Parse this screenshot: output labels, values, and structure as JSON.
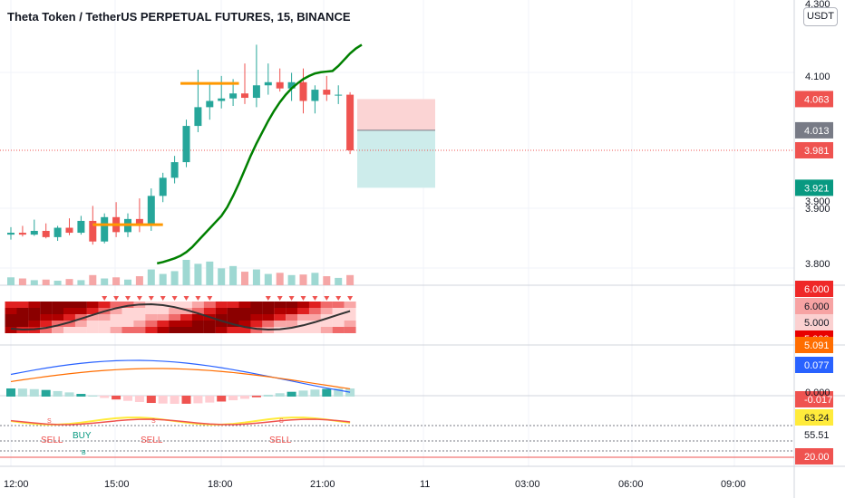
{
  "header": {
    "title": "Theta Token / TetherUS PERPETUAL FUTURES, 15, BINANCE",
    "currency": "USDT"
  },
  "colors": {
    "up": "#26a69a",
    "down": "#ef5350",
    "up_vol": "#9ed8d2",
    "down_vol": "#f5a6a6",
    "ma": "#008000",
    "level": "#ff9800",
    "short_loss_zone": "#fbd4d4",
    "short_profit_zone": "#cdeceb"
  },
  "chart_data": [
    {
      "type": "candlestick",
      "pane": "price",
      "yticks": [
        "4.100",
        "3.900",
        "3.800"
      ],
      "ylim": [
        3.765,
        4.21
      ],
      "candles": [
        {
          "o": 3.846,
          "h": 3.858,
          "l": 3.838,
          "c": 3.849
        },
        {
          "o": 3.849,
          "h": 3.86,
          "l": 3.843,
          "c": 3.846
        },
        {
          "o": 3.846,
          "h": 3.87,
          "l": 3.844,
          "c": 3.852
        },
        {
          "o": 3.852,
          "h": 3.864,
          "l": 3.84,
          "c": 3.842
        },
        {
          "o": 3.842,
          "h": 3.86,
          "l": 3.836,
          "c": 3.857
        },
        {
          "o": 3.857,
          "h": 3.872,
          "l": 3.845,
          "c": 3.849
        },
        {
          "o": 3.849,
          "h": 3.876,
          "l": 3.846,
          "c": 3.868
        },
        {
          "o": 3.868,
          "h": 3.892,
          "l": 3.83,
          "c": 3.835
        },
        {
          "o": 3.835,
          "h": 3.88,
          "l": 3.832,
          "c": 3.874
        },
        {
          "o": 3.874,
          "h": 3.898,
          "l": 3.842,
          "c": 3.85
        },
        {
          "o": 3.85,
          "h": 3.88,
          "l": 3.842,
          "c": 3.871
        },
        {
          "o": 3.871,
          "h": 3.904,
          "l": 3.85,
          "c": 3.862
        },
        {
          "o": 3.862,
          "h": 3.92,
          "l": 3.852,
          "c": 3.908
        },
        {
          "o": 3.908,
          "h": 3.945,
          "l": 3.898,
          "c": 3.937
        },
        {
          "o": 3.937,
          "h": 3.972,
          "l": 3.928,
          "c": 3.962
        },
        {
          "o": 3.962,
          "h": 4.03,
          "l": 3.954,
          "c": 4.02
        },
        {
          "o": 4.02,
          "h": 4.11,
          "l": 4.01,
          "c": 4.05
        },
        {
          "o": 4.05,
          "h": 4.09,
          "l": 4.03,
          "c": 4.06
        },
        {
          "o": 4.06,
          "h": 4.1,
          "l": 4.048,
          "c": 4.064
        },
        {
          "o": 4.064,
          "h": 4.095,
          "l": 4.052,
          "c": 4.072
        },
        {
          "o": 4.072,
          "h": 4.12,
          "l": 4.055,
          "c": 4.065
        },
        {
          "o": 4.065,
          "h": 4.15,
          "l": 4.05,
          "c": 4.085
        },
        {
          "o": 4.085,
          "h": 4.12,
          "l": 4.07,
          "c": 4.09
        },
        {
          "o": 4.09,
          "h": 4.112,
          "l": 4.075,
          "c": 4.08
        },
        {
          "o": 4.08,
          "h": 4.105,
          "l": 4.06,
          "c": 4.09
        },
        {
          "o": 4.09,
          "h": 4.112,
          "l": 4.04,
          "c": 4.06
        },
        {
          "o": 4.06,
          "h": 4.085,
          "l": 4.04,
          "c": 4.078
        },
        {
          "o": 4.078,
          "h": 4.1,
          "l": 4.06,
          "c": 4.07
        },
        {
          "o": 4.07,
          "h": 4.085,
          "l": 4.055,
          "c": 4.07
        },
        {
          "o": 4.07,
          "h": 4.074,
          "l": 3.975,
          "c": 3.981
        }
      ],
      "volume": [
        14,
        12,
        9,
        10,
        8,
        11,
        9,
        18,
        12,
        14,
        10,
        16,
        28,
        20,
        25,
        45,
        38,
        42,
        30,
        34,
        24,
        28,
        20,
        22,
        18,
        19,
        22,
        16,
        13,
        18
      ],
      "ma": [
        3.8,
        3.802,
        3.805,
        3.808,
        3.812,
        3.818,
        3.826,
        3.836,
        3.846,
        3.856,
        3.866,
        3.876,
        3.89,
        3.908,
        3.928,
        3.95,
        3.972,
        3.992,
        4.01,
        4.028,
        4.044,
        4.058,
        4.07,
        4.08,
        4.088,
        4.095,
        4.1,
        4.104,
        4.106,
        4.107,
        4.108,
        4.116,
        4.126,
        4.136,
        4.144,
        4.15
      ],
      "levels": [
        {
          "from": 14,
          "to": 26,
          "price": 3.862
        },
        {
          "from": 29,
          "to": 39,
          "price": 4.088
        }
      ],
      "short_position": {
        "stop": 4.063,
        "entry": 4.013,
        "target": 3.921
      },
      "price_labels": [
        {
          "text": "4.063",
          "color": "#ef5350"
        },
        {
          "text": "4.013",
          "color": "#787b86"
        },
        {
          "text": "3.981",
          "color": "#ef5350"
        },
        {
          "text": "3.921",
          "color": "#089981"
        }
      ],
      "partial_labels": [
        "4.300",
        "3.900"
      ]
    },
    {
      "type": "heatmap",
      "pane": "indicator-1",
      "yticks": [
        "6.000",
        "5.000"
      ],
      "labels": [
        {
          "text": "6.000",
          "color": "#ef2828"
        },
        {
          "text": "6.000",
          "color": "#f7a3a3"
        },
        {
          "text": "5.000",
          "color": "#fbd0d0"
        },
        {
          "text": "5.000",
          "color": "#e80000"
        }
      ]
    },
    {
      "type": "line",
      "pane": "macd",
      "labels": [
        {
          "text": "5.091",
          "color": "#ff6d00"
        },
        {
          "text": "0.077",
          "color": "#2962ff"
        },
        {
          "text": "-0.017",
          "color": "#ef5350"
        }
      ],
      "partial_labels": [
        "0.000"
      ]
    },
    {
      "type": "line",
      "pane": "stochastic",
      "signals": [
        "SELL",
        "BUY",
        "SELL",
        "SELL"
      ],
      "marks": [
        "S",
        "S",
        "S",
        "B"
      ],
      "labels": [
        {
          "text": "63.24",
          "color": "#ffeb3b"
        },
        {
          "text": "55.51",
          "color": "#ffffff"
        },
        {
          "text": "20.00",
          "color": "#ef5350"
        }
      ]
    }
  ],
  "time_axis": [
    "12:00",
    "15:00",
    "18:00",
    "21:00",
    "11",
    "03:00",
    "06:00",
    "09:00"
  ]
}
